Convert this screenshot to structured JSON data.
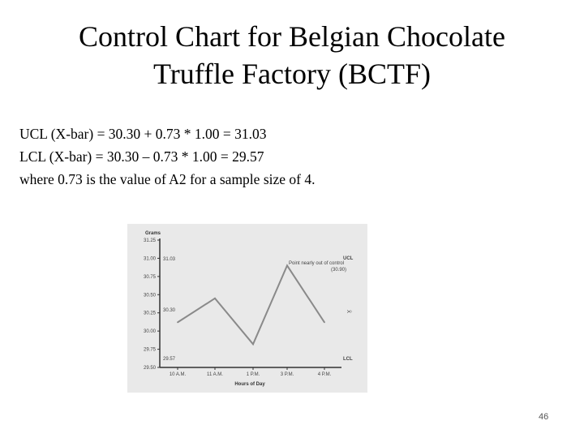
{
  "slide": {
    "title_line1": "Control Chart for Belgian Chocolate",
    "title_line2": "Truffle Factory (BCTF)",
    "formula_ucl": "UCL (X-bar) = 30.30 + 0.73 * 1.00 = 31.03",
    "formula_lcl": "LCL (X-bar) =  30.30 – 0.73 * 1.00 = 29.57",
    "formula_note": "where 0.73 is the value of A2 for a sample size of 4.",
    "page_number": "46"
  },
  "chart_data": {
    "type": "line",
    "ylabel": "Grams",
    "xlabel": "Hours of Day",
    "categories": [
      "10 A.M.",
      "11 A.M.",
      "1 P.M.",
      "3 P.M.",
      "4 P.M."
    ],
    "series": [
      {
        "values": [
          30.12,
          30.45,
          29.82,
          30.9,
          30.12
        ]
      }
    ],
    "ylim": [
      29.5,
      31.25
    ],
    "y_ticks": [
      29.5,
      29.75,
      30.0,
      30.25,
      30.5,
      30.75,
      31.0,
      31.25
    ],
    "y_tick_labels": [
      "29.50",
      "29.75",
      "30.00",
      "30.25",
      "30.50",
      "30.75",
      "31.00",
      "31.25"
    ],
    "reference_labels": {
      "ucl_value": "31.03",
      "center_value": "30.30",
      "lcl_value": "29.57"
    },
    "right_labels": {
      "ucl": "UCL",
      "center": "X̄",
      "lcl": "LCL"
    },
    "annotation_line1": "Point nearly out of control",
    "annotation_line2": "(30.90)",
    "grid": false
  }
}
